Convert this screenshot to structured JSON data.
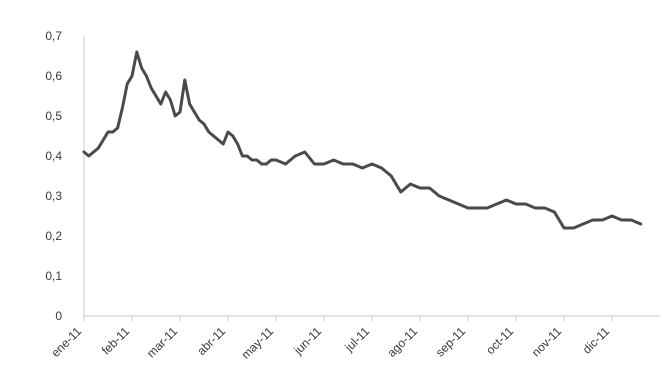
{
  "chart_data": {
    "type": "line",
    "title": "",
    "xlabel": "",
    "ylabel": "",
    "ylim": [
      0,
      0.7
    ],
    "y_ticks": [
      "0",
      "0,1",
      "0,2",
      "0,3",
      "0,4",
      "0,5",
      "0,6",
      "0,7"
    ],
    "categories": [
      "ene-11",
      "feb-11",
      "mar-11",
      "abr-11",
      "may-11",
      "jun-11",
      "jul-11",
      "ago-11",
      "sep-11",
      "oct-11",
      "nov-11",
      "dic-11"
    ],
    "grid": false,
    "legend": "none",
    "line_color": "#4a4a4a",
    "series": [
      {
        "x": [
          0,
          0.1,
          0.2,
          0.3,
          0.4,
          0.5,
          0.6,
          0.7,
          0.8,
          0.9,
          1.0,
          1.1,
          1.2,
          1.3,
          1.4,
          1.5,
          1.6,
          1.7,
          1.8,
          1.9,
          2.0,
          2.1,
          2.2,
          2.3,
          2.4,
          2.5,
          2.6,
          2.7,
          2.8,
          2.9,
          3.0,
          3.1,
          3.2,
          3.3,
          3.4,
          3.5,
          3.6,
          3.7,
          3.8,
          3.9,
          4.0,
          4.2,
          4.4,
          4.6,
          4.8,
          5.0,
          5.2,
          5.4,
          5.6,
          5.8,
          6.0,
          6.2,
          6.4,
          6.6,
          6.8,
          7.0,
          7.2,
          7.4,
          7.6,
          7.8,
          8.0,
          8.2,
          8.4,
          8.6,
          8.8,
          9.0,
          9.2,
          9.4,
          9.6,
          9.8,
          10.0,
          10.2,
          10.4,
          10.6,
          10.8,
          11.0,
          11.2,
          11.4,
          11.6
        ],
        "values": [
          0.41,
          0.4,
          0.41,
          0.42,
          0.44,
          0.46,
          0.46,
          0.47,
          0.52,
          0.58,
          0.6,
          0.66,
          0.62,
          0.6,
          0.57,
          0.55,
          0.53,
          0.56,
          0.54,
          0.5,
          0.51,
          0.59,
          0.53,
          0.51,
          0.49,
          0.48,
          0.46,
          0.45,
          0.44,
          0.43,
          0.46,
          0.45,
          0.43,
          0.4,
          0.4,
          0.39,
          0.39,
          0.38,
          0.38,
          0.39,
          0.39,
          0.38,
          0.4,
          0.41,
          0.38,
          0.38,
          0.39,
          0.38,
          0.38,
          0.37,
          0.38,
          0.37,
          0.35,
          0.31,
          0.33,
          0.32,
          0.32,
          0.3,
          0.29,
          0.28,
          0.27,
          0.27,
          0.27,
          0.28,
          0.29,
          0.28,
          0.28,
          0.27,
          0.27,
          0.26,
          0.22,
          0.22,
          0.23,
          0.24,
          0.24,
          0.25,
          0.24,
          0.24,
          0.23
        ]
      }
    ]
  }
}
